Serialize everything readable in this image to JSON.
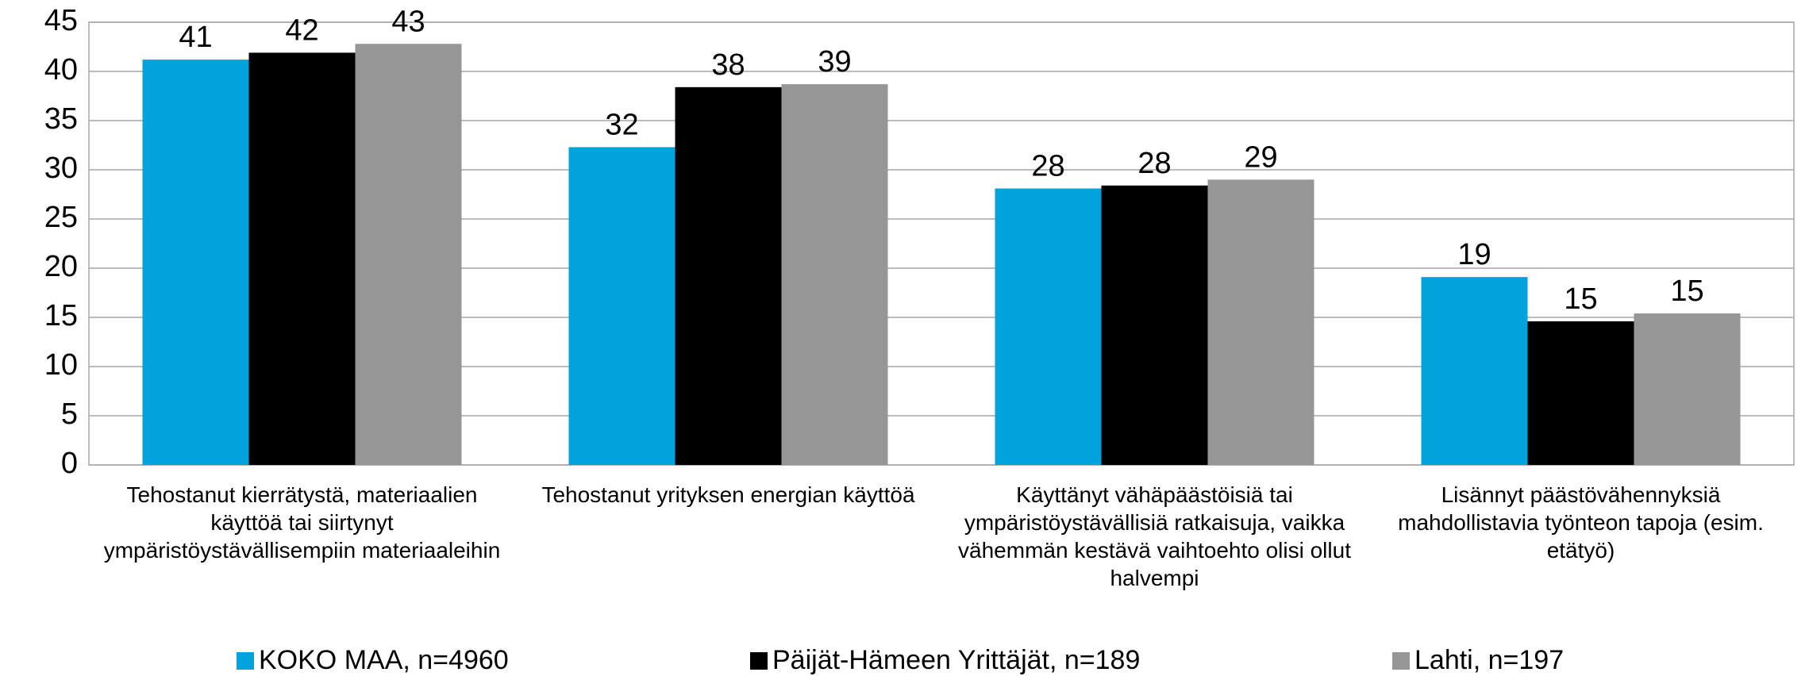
{
  "chart_data": {
    "type": "bar",
    "categories": [
      "Tehostanut kierrätystä, materiaalien käyttöä tai siirtynyt ympäristöystävällisempiin materiaaleihin",
      "Tehostanut yrityksen energian käyttöä",
      "Käyttänyt vähäpäästöisiä tai ympäristöystävällisiä ratkaisuja, vaikka vähemmän kestävä vaihtoehto olisi ollut halvempi",
      "Lisännyt päästövähennyksiä mahdollistavia työnteon tapoja (esim. etätyö)"
    ],
    "series": [
      {
        "name": "KOKO MAA, n=4960",
        "color": "#00a3dc",
        "values": [
          41.2,
          32.3,
          28.1,
          19.1
        ],
        "value_labels": [
          "41",
          "32",
          "28",
          "19"
        ]
      },
      {
        "name": "Päijät-Hämeen Yrittäjät, n=189",
        "color": "#000000",
        "values": [
          41.9,
          38.4,
          28.4,
          14.6
        ],
        "value_labels": [
          "42",
          "38",
          "28",
          "15"
        ]
      },
      {
        "name": "Lahti, n=197",
        "color": "#969696",
        "values": [
          42.8,
          38.7,
          29.0,
          15.4
        ],
        "value_labels": [
          "43",
          "39",
          "29",
          "15"
        ]
      }
    ],
    "ylim": [
      0,
      45
    ],
    "yticks": [
      0,
      5,
      10,
      15,
      20,
      25,
      30,
      35,
      40,
      45
    ],
    "grid": true,
    "legend": "bottom"
  }
}
